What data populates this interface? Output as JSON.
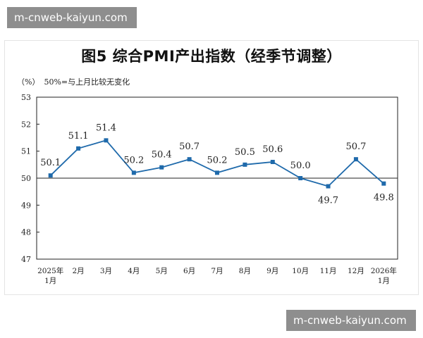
{
  "watermarks": {
    "top": "m-cnweb-kaiyun.com",
    "bottom": "m-cnweb-kaiyun.com"
  },
  "chart_data": {
    "type": "line",
    "title": "图5  综合PMI产出指数（经季节调整）",
    "unit_label": "（%）",
    "note": "50%=与上月比较无变化",
    "categories": [
      [
        "2025年",
        "1月"
      ],
      [
        "2月"
      ],
      [
        "3月"
      ],
      [
        "4月"
      ],
      [
        "5月"
      ],
      [
        "6月"
      ],
      [
        "7月"
      ],
      [
        "8月"
      ],
      [
        "9月"
      ],
      [
        "10月"
      ],
      [
        "11月"
      ],
      [
        "12月"
      ],
      [
        "2026年",
        "1月"
      ]
    ],
    "values": [
      50.1,
      51.1,
      51.4,
      50.2,
      50.4,
      50.7,
      50.2,
      50.5,
      50.6,
      50.0,
      49.7,
      50.7,
      49.8
    ],
    "data_labels": [
      "50.1",
      "51.1",
      "51.4",
      "50.2",
      "50.4",
      "50.7",
      "50.2",
      "50.5",
      "50.6",
      "50.0",
      "49.7",
      "50.7",
      "49.8"
    ],
    "ylim": [
      47,
      53
    ],
    "yticks": [
      47,
      48,
      49,
      50,
      51,
      52,
      53
    ],
    "reference_line": 50,
    "line_color": "#1f6aab",
    "grid": false
  }
}
